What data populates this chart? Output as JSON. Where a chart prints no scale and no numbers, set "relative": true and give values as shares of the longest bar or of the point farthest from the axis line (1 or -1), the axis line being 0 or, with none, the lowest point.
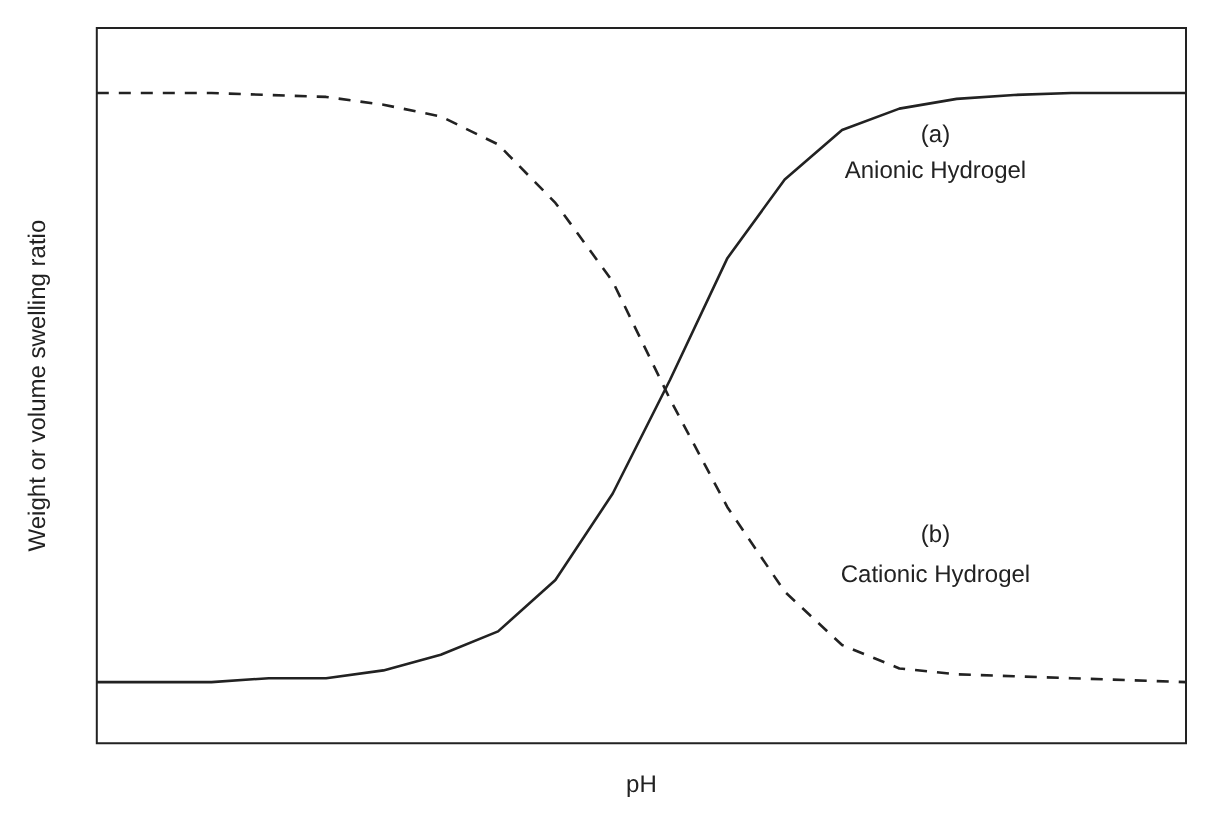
{
  "chart_data": {
    "type": "line",
    "relative": true,
    "xlabel": "pH",
    "ylabel": "Weight or volume swelling ratio",
    "categories": [
      null,
      null,
      null,
      null,
      null,
      null,
      null,
      null,
      null,
      null,
      null,
      null,
      null,
      null,
      null,
      null,
      null,
      null,
      null,
      null
    ],
    "series": [
      {
        "color": "#222222",
        "line_style": "solid",
        "values": [
          0.094,
          0.094,
          0.094,
          0.1,
          0.1,
          0.112,
          0.136,
          0.172,
          0.251,
          0.384,
          0.559,
          0.746,
          0.867,
          0.943,
          0.976,
          0.991,
          0.997,
          1,
          1,
          1
        ]
      },
      {
        "color": "#222222",
        "line_style": "dashed",
        "values": [
          1,
          1,
          1,
          0.997,
          0.994,
          0.982,
          0.964,
          0.921,
          0.831,
          0.71,
          0.529,
          0.363,
          0.233,
          0.151,
          0.115,
          0.106,
          0.103,
          0.1,
          0.097,
          0.094
        ]
      }
    ],
    "annotations": [
      "(a)",
      "Anionic Hydrogel",
      "(b)",
      "Cationic Hydrogel"
    ],
    "marker": "none",
    "grid": false,
    "legend": false
  }
}
